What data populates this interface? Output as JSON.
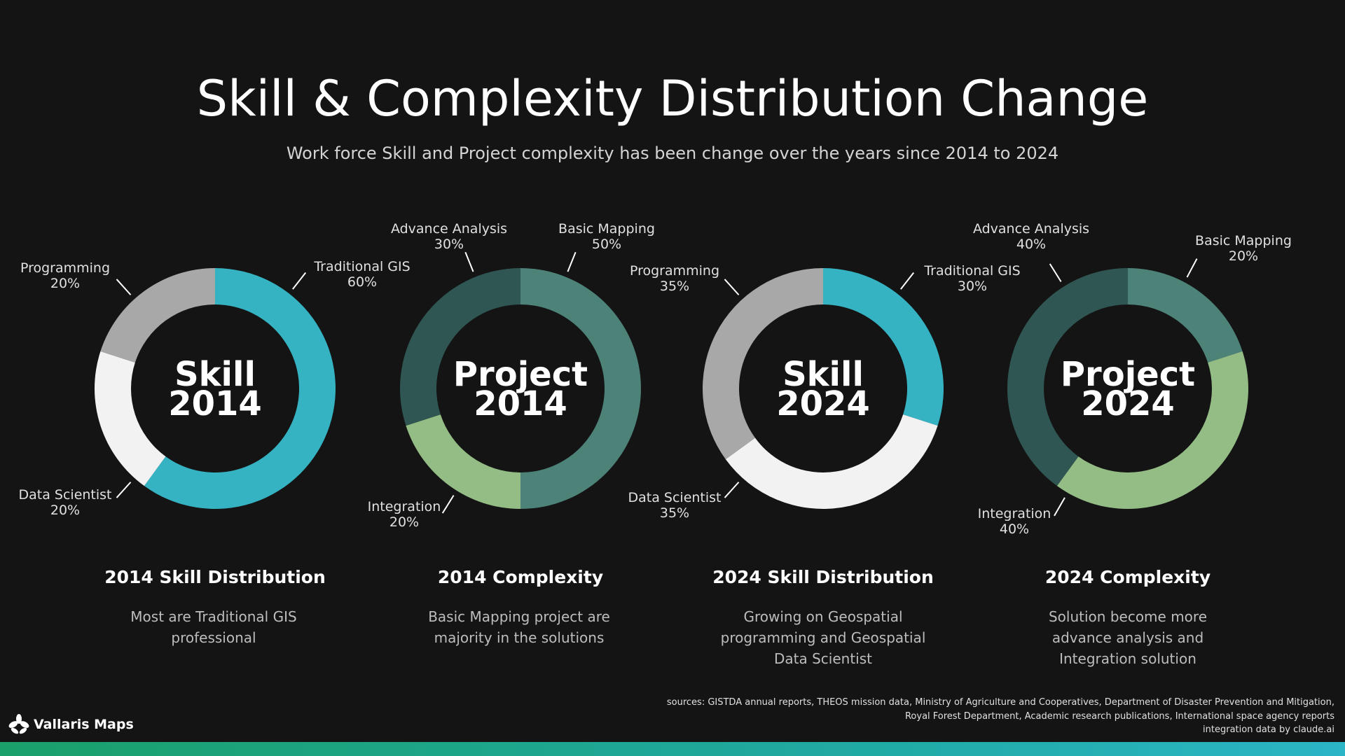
{
  "page": {
    "title": "Skill & Complexity Distribution Change",
    "subtitle": "Work force Skill and Project complexity has been change over the years since 2014 to 2024",
    "sources": [
      "sources: GISTDA annual reports, THEOS mission data, Ministry of Agriculture and Cooperatives, Department of Disaster Prevention and Mitigation,",
      "Royal Forest Department, Academic research publications, International space agency reports",
      "integration data by claude.ai"
    ],
    "logo_text": "Vallaris Maps",
    "colors": {
      "background": "#141414",
      "traditional_gis": "#35b3c2",
      "programming": "#a8a8a8",
      "data_scientist": "#f2f2f2",
      "basic_mapping": "#4d8278",
      "advance_analysis": "#2f5652",
      "integration": "#94bd85"
    }
  },
  "panels": [
    {
      "title": "2014 Skill Distribution",
      "description": "Most are Traditional GIS professional",
      "center_line1": "Skill",
      "center_line2": "2014"
    },
    {
      "title": "2014 Complexity",
      "description": "Basic Mapping project are majority in the solutions",
      "center_line1": "Project",
      "center_line2": "2014"
    },
    {
      "title": "2024 Skill Distribution",
      "description": "Growing on Geospatial programming and Geospatial Data Scientist",
      "center_line1": "Skill",
      "center_line2": "2024"
    },
    {
      "title": "2024 Complexity",
      "description": "Solution become more advance analysis and Integration solution",
      "center_line1": "Project",
      "center_line2": "2024"
    }
  ],
  "chart_data": [
    {
      "type": "pie",
      "title": "2014 Skill Distribution",
      "categories": [
        "Traditional GIS",
        "Data Scientist",
        "Programming"
      ],
      "values": [
        60,
        20,
        20
      ],
      "value_labels": [
        "60%",
        "20%",
        "20%"
      ],
      "colors": [
        "#35b3c2",
        "#f2f2f2",
        "#a8a8a8"
      ]
    },
    {
      "type": "pie",
      "title": "2014 Complexity",
      "categories": [
        "Basic Mapping",
        "Integration",
        "Advance Analysis"
      ],
      "values": [
        50,
        20,
        30
      ],
      "value_labels": [
        "50%",
        "20%",
        "30%"
      ],
      "colors": [
        "#4d8278",
        "#94bd85",
        "#2f5652"
      ]
    },
    {
      "type": "pie",
      "title": "2024 Skill Distribution",
      "categories": [
        "Traditional GIS",
        "Data Scientist",
        "Programming"
      ],
      "values": [
        30,
        35,
        35
      ],
      "value_labels": [
        "30%",
        "35%",
        "35%"
      ],
      "colors": [
        "#35b3c2",
        "#f2f2f2",
        "#a8a8a8"
      ]
    },
    {
      "type": "pie",
      "title": "2024 Complexity",
      "categories": [
        "Basic Mapping",
        "Integration",
        "Advance Analysis"
      ],
      "values": [
        20,
        40,
        40
      ],
      "value_labels": [
        "20%",
        "40%",
        "40%"
      ],
      "colors": [
        "#4d8278",
        "#94bd85",
        "#2f5652"
      ]
    }
  ]
}
